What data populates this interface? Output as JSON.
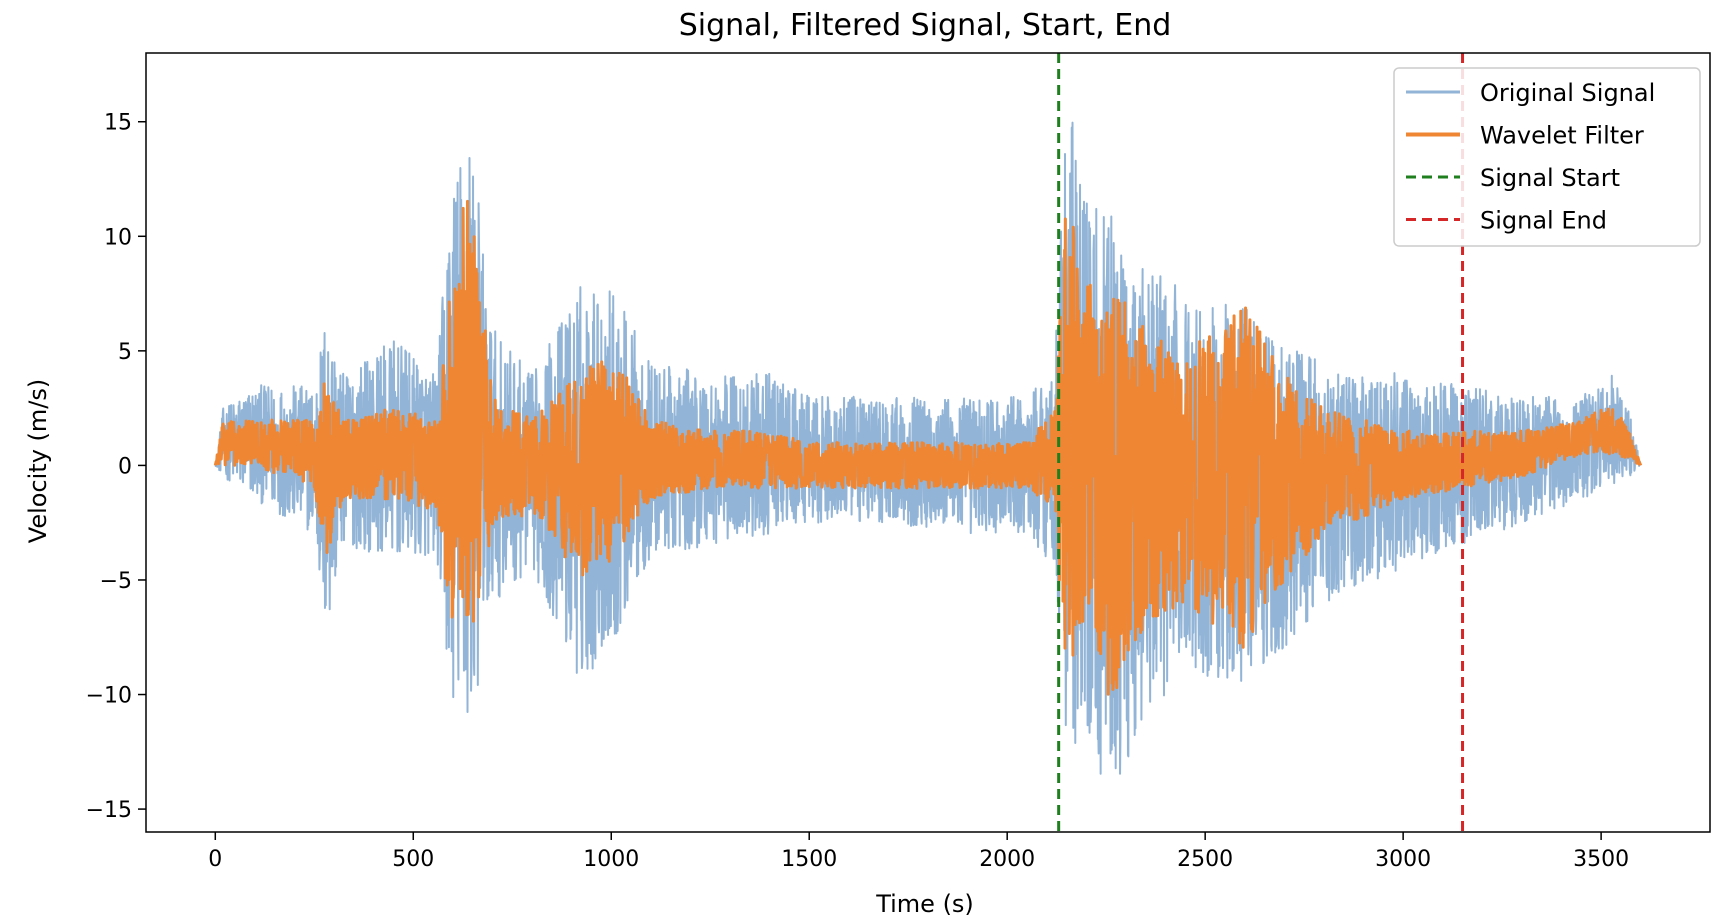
{
  "chart_data": {
    "type": "line",
    "title": "Signal, Filtered Signal, Start, End",
    "xlabel": "Time (s)",
    "ylabel": "Velocity (m/s)",
    "xlim": [
      -175,
      3775
    ],
    "ylim": [
      -16,
      18
    ],
    "x_ticks": [
      0,
      500,
      1000,
      1500,
      2000,
      2500,
      3000,
      3500
    ],
    "x_tick_labels": [
      "0",
      "500",
      "1000",
      "1500",
      "2000",
      "2500",
      "3000",
      "3500"
    ],
    "y_ticks": [
      -15,
      -10,
      -5,
      0,
      5,
      10,
      15
    ],
    "y_tick_labels": [
      "−15",
      "−10",
      "−5",
      "0",
      "5",
      "10",
      "15"
    ],
    "grid": false,
    "legend_position": "top-right",
    "series": [
      {
        "name": "Original Signal",
        "kind": "line",
        "color": "#92b4d6",
        "envelope_time": [
          0,
          20,
          100,
          250,
          280,
          320,
          450,
          560,
          590,
          640,
          700,
          800,
          920,
          1000,
          1100,
          1250,
          1400,
          1500,
          1700,
          1900,
          2050,
          2120,
          2150,
          2200,
          2260,
          2350,
          2450,
          2600,
          2700,
          2800,
          3000,
          3150,
          3300,
          3450,
          3530,
          3570,
          3600
        ],
        "envelope_upper": [
          0,
          2.5,
          3.5,
          3.5,
          7,
          4,
          5.5,
          4,
          11.5,
          15.7,
          6,
          4,
          8,
          8,
          4.5,
          4,
          4,
          3,
          3,
          3,
          3,
          4.5,
          16.7,
          12,
          11,
          9,
          7.5,
          7,
          5.5,
          4.5,
          4,
          3.5,
          3,
          3,
          4,
          2.5,
          0
        ],
        "envelope_lower": [
          0,
          -0.5,
          -1.5,
          -3,
          -7.8,
          -3.5,
          -4,
          -4,
          -10,
          -12.3,
          -6,
          -4.5,
          -9.5,
          -8,
          -4,
          -3.5,
          -3,
          -2.5,
          -2.5,
          -3,
          -3,
          -4.5,
          -12,
          -12.5,
          -14.5,
          -11,
          -9,
          -9.5,
          -8,
          -6,
          -4.5,
          -3.5,
          -2.5,
          -1.5,
          -1,
          -0.5,
          0
        ]
      },
      {
        "name": "Wavelet Filter",
        "kind": "line",
        "color": "#ee8634",
        "envelope_time": [
          0,
          20,
          100,
          250,
          280,
          320,
          450,
          560,
          590,
          640,
          700,
          800,
          920,
          1000,
          1100,
          1250,
          1400,
          1500,
          1700,
          1900,
          2050,
          2120,
          2150,
          2200,
          2260,
          2350,
          2450,
          2600,
          2700,
          2800,
          3000,
          3150,
          3300,
          3450,
          3530,
          3570,
          3600
        ],
        "envelope_upper": [
          0,
          2,
          2,
          2,
          4,
          2,
          2.5,
          2,
          7.5,
          12.7,
          3,
          2,
          4,
          5,
          2,
          1.5,
          1.5,
          1,
          1,
          1,
          1,
          2.5,
          12.2,
          8,
          8,
          6,
          5,
          7,
          4,
          2.5,
          1.5,
          1.5,
          1.5,
          2,
          2.7,
          1.5,
          0
        ],
        "envelope_lower": [
          0,
          0,
          0,
          -1,
          -4.2,
          -1.5,
          -1.5,
          -2,
          -6.5,
          -7.8,
          -3,
          -2,
          -5,
          -4.5,
          -1.5,
          -1,
          -1,
          -1,
          -1,
          -1,
          -1,
          -2,
          -9.5,
          -7,
          -10.5,
          -7,
          -6,
          -8,
          -5,
          -3,
          -1.5,
          -1,
          -0.5,
          0.5,
          0.5,
          0.3,
          0
        ]
      }
    ],
    "vlines": [
      {
        "name": "Signal Start",
        "x": 2130,
        "color": "#1f7f1f",
        "style": "dashed"
      },
      {
        "name": "Signal End",
        "x": 3150,
        "color": "#d62728",
        "style": "dashed"
      }
    ],
    "legend": [
      {
        "label": "Original Signal",
        "color": "#92b4d6",
        "style": "solid"
      },
      {
        "label": "Wavelet Filter",
        "color": "#ee8634",
        "style": "solid"
      },
      {
        "label": "Signal Start",
        "color": "#1f7f1f",
        "style": "dashed"
      },
      {
        "label": "Signal End",
        "color": "#d62728",
        "style": "dashed"
      }
    ]
  }
}
